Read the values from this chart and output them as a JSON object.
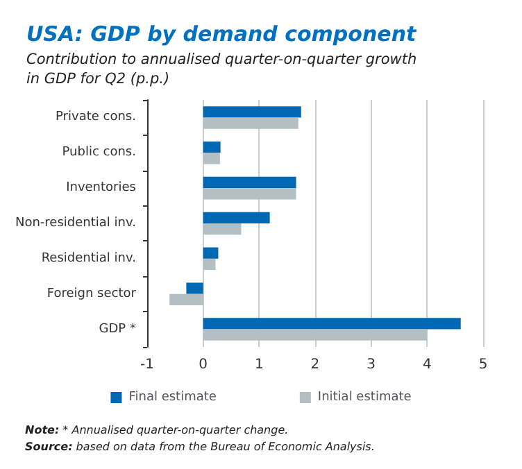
{
  "chart_data": {
    "type": "bar",
    "orientation": "horizontal",
    "title": "USA: GDP by demand component",
    "subtitle": "Contribution to annualised quarter-on-quarter growth\nin GDP for Q2 (p.p.)",
    "categories": [
      "Private cons.",
      "Public cons.",
      "Inventories",
      "Non-residential inv.",
      "Residential inv.",
      "Foreign sector",
      "GDP *"
    ],
    "series": [
      {
        "name": "Final estimate",
        "color": "#0068b3",
        "values": [
          1.75,
          0.31,
          1.66,
          1.19,
          0.27,
          -0.3,
          4.6
        ]
      },
      {
        "name": "Initial estimate",
        "color": "#b4bfc4",
        "values": [
          1.7,
          0.3,
          1.66,
          0.68,
          0.22,
          -0.6,
          4.0
        ]
      }
    ],
    "xlim": [
      -1,
      5
    ],
    "xticks": [
      -1,
      0,
      1,
      2,
      3,
      4,
      5
    ],
    "grid": "x",
    "legend": "bottom",
    "annotations": [
      "Note: * Annualised quarter-on-quarter change.",
      "Source: based on data from the Bureau of Economic Analysis."
    ]
  }
}
